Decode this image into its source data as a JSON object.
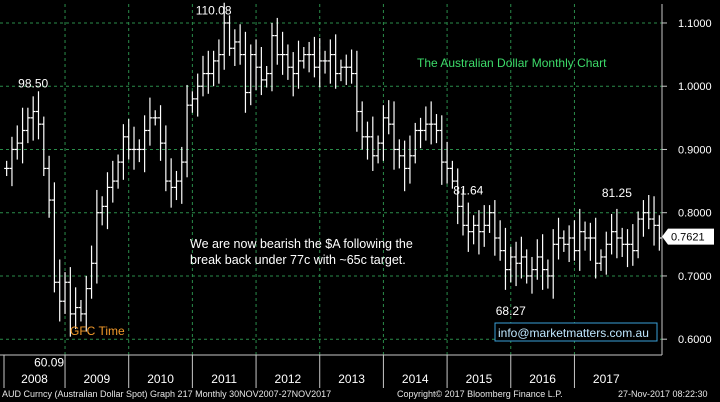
{
  "chart_data": {
    "type": "ohlc-bar",
    "title": "The Australian Dollar Monthly Chart",
    "y_ticks": [
      "1.1000",
      "1.0000",
      "0.9000",
      "0.8000",
      "0.7000",
      "0.6000"
    ],
    "y_range": [
      0.575,
      1.13
    ],
    "x_years": [
      "2008",
      "2009",
      "2010",
      "2011",
      "2012",
      "2013",
      "2014",
      "2015",
      "2016",
      "2017"
    ],
    "last_price": "0.7621",
    "annotations": [
      {
        "label": "110.08",
        "x": "2011-05",
        "y": 1.1008
      },
      {
        "label": "98.50",
        "x": "2008-07",
        "y": 0.985
      },
      {
        "label": "60.09",
        "x": "2008-10",
        "y": 0.6009
      },
      {
        "label": "81.64",
        "x": "2015-05",
        "y": 0.8164
      },
      {
        "label": "68.27",
        "x": "2016-01",
        "y": 0.6827
      },
      {
        "label": "81.25",
        "x": "2017-09",
        "y": 0.8125
      }
    ],
    "gfc_label": "GFC Time",
    "commentary": [
      "We are now bearish the $A following the",
      "break back under 77c with ~65c target."
    ],
    "watermark": "info@marketmatters.com.au",
    "monthly_closes": [
      0.87,
      0.9,
      0.91,
      0.93,
      0.95,
      0.96,
      0.94,
      0.87,
      0.82,
      0.69,
      0.66,
      0.69,
      0.64,
      0.65,
      0.64,
      0.68,
      0.72,
      0.8,
      0.81,
      0.84,
      0.85,
      0.88,
      0.92,
      0.9,
      0.9,
      0.9,
      0.93,
      0.95,
      0.95,
      0.91,
      0.85,
      0.84,
      0.85,
      0.88,
      0.97,
      0.98,
      1.0,
      1.02,
      1.02,
      1.04,
      1.05,
      1.1,
      1.06,
      1.07,
      1.05,
      0.99,
      1.05,
      1.03,
      1.01,
      1.02,
      1.08,
      1.05,
      1.05,
      1.03,
      1.02,
      1.04,
      1.05,
      1.05,
      1.03,
      1.04,
      1.04,
      1.05,
      1.02,
      1.03,
      1.03,
      1.02,
      0.96,
      0.92,
      0.92,
      0.89,
      0.91,
      0.95,
      0.94,
      0.9,
      0.89,
      0.87,
      0.89,
      0.93,
      0.93,
      0.94,
      0.94,
      0.93,
      0.88,
      0.87,
      0.85,
      0.81,
      0.78,
      0.77,
      0.78,
      0.77,
      0.78,
      0.8,
      0.76,
      0.74,
      0.71,
      0.73,
      0.72,
      0.73,
      0.7,
      0.71,
      0.73,
      0.71,
      0.7,
      0.75,
      0.76,
      0.75,
      0.76,
      0.74,
      0.77,
      0.76,
      0.76,
      0.72,
      0.73,
      0.75,
      0.77,
      0.76,
      0.75,
      0.75,
      0.74,
      0.79,
      0.8,
      0.79,
      0.78,
      0.76
    ],
    "grid": true,
    "bar_color": "#ffffff",
    "line_color": "#2a8c4a",
    "axis_color": "#c8c8c8"
  },
  "footer": {
    "left": "AUD Curncy (Australian Dollar Spot) Graph 217  Monthly 30NOV2007-27NOV2017",
    "center": "Copyright© 2017 Bloomberg Finance L.P.",
    "right": "27-Nov-2017 08:22:30"
  }
}
